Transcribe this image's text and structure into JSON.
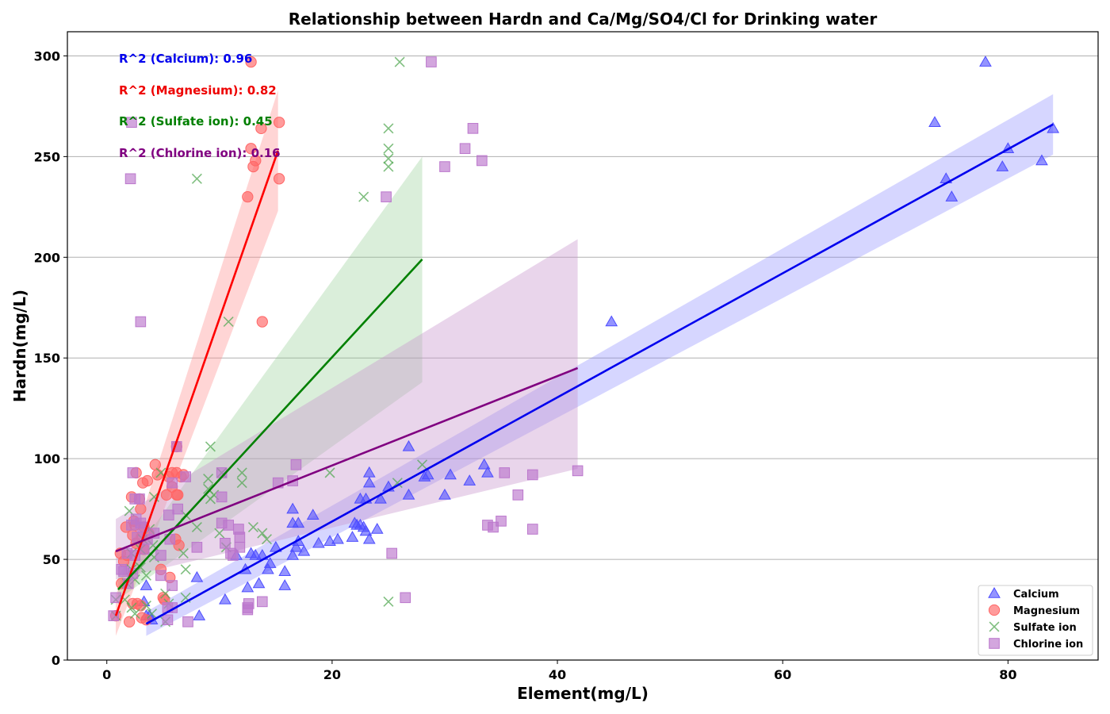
{
  "chart_data": {
    "type": "scatter",
    "title": "Relationship between Hardn and Ca/Mg/SO4/Cl for Drinking water",
    "xlabel": "Element(mg/L)",
    "ylabel": "Hardn(mg/L)",
    "xlim": [
      -3.5,
      88
    ],
    "ylim": [
      0,
      312
    ],
    "xticks": [
      0,
      20,
      40,
      60,
      80
    ],
    "yticks": [
      0,
      50,
      100,
      150,
      200,
      250,
      300
    ],
    "grid": "y-major",
    "legend_position": "bottom-right",
    "annotations": [
      {
        "text": "R^2 (Calcium): 0.96",
        "color": "#0000ee"
      },
      {
        "text": "R^2 (Magnesium): 0.82",
        "color": "#ee0000"
      },
      {
        "text": "R^2 (Sulfate ion): 0.45",
        "color": "#008000"
      },
      {
        "text": "R^2 (Chlorine ion): 0.16",
        "color": "#800080"
      }
    ],
    "series": [
      {
        "name": "Calcium",
        "marker": "triangle",
        "color": "#4d4dff",
        "fit": {
          "x": [
            3.5,
            84
          ],
          "y": [
            18,
            266
          ],
          "band_half_width": [
            6,
            15
          ]
        },
        "points": [
          [
            73.5,
            267
          ],
          [
            74.5,
            239
          ],
          [
            75,
            230
          ],
          [
            78,
            297
          ],
          [
            79.5,
            245
          ],
          [
            80,
            254
          ],
          [
            83,
            248
          ],
          [
            84,
            264
          ],
          [
            44.8,
            168
          ],
          [
            26.8,
            106
          ],
          [
            33.5,
            97
          ],
          [
            33.8,
            93
          ],
          [
            30.5,
            92
          ],
          [
            28.5,
            92
          ],
          [
            28.2,
            91
          ],
          [
            32.2,
            89
          ],
          [
            30,
            82
          ],
          [
            26.8,
            82
          ],
          [
            23.3,
            93
          ],
          [
            23.3,
            88
          ],
          [
            25,
            86
          ],
          [
            24.3,
            80
          ],
          [
            22.5,
            80
          ],
          [
            23,
            80
          ],
          [
            22,
            68
          ],
          [
            22.2,
            67
          ],
          [
            22.5,
            67
          ],
          [
            22.8,
            66
          ],
          [
            23,
            64
          ],
          [
            21.8,
            61
          ],
          [
            23.3,
            60
          ],
          [
            24,
            65
          ],
          [
            18.3,
            72
          ],
          [
            19.8,
            59
          ],
          [
            20.5,
            60
          ],
          [
            18.8,
            58
          ],
          [
            16.5,
            75
          ],
          [
            16.5,
            68
          ],
          [
            17,
            68
          ],
          [
            17,
            59
          ],
          [
            16.8,
            56
          ],
          [
            17.5,
            54
          ],
          [
            16.5,
            52
          ],
          [
            15,
            56
          ],
          [
            15.8,
            44
          ],
          [
            14.5,
            48
          ],
          [
            14.3,
            45
          ],
          [
            13.2,
            52
          ],
          [
            13.8,
            52
          ],
          [
            12.8,
            53
          ],
          [
            13.5,
            38
          ],
          [
            12.5,
            36
          ],
          [
            15.8,
            37
          ],
          [
            12.3,
            45
          ],
          [
            11.5,
            52
          ],
          [
            10.5,
            30
          ],
          [
            8,
            41
          ],
          [
            8.2,
            22
          ],
          [
            3.5,
            37
          ],
          [
            3.3,
            29
          ],
          [
            3.5,
            22
          ],
          [
            3.8,
            22
          ],
          [
            4,
            20
          ]
        ]
      },
      {
        "name": "Magnesium",
        "marker": "circle",
        "color": "#ff6666",
        "fit": {
          "x": [
            0.8,
            15.2
          ],
          "y": [
            22,
            253
          ],
          "band_half_width": [
            10,
            30
          ]
        },
        "points": [
          [
            12.8,
            297
          ],
          [
            13.7,
            264
          ],
          [
            15.3,
            267
          ],
          [
            12.8,
            254
          ],
          [
            13,
            245
          ],
          [
            13.2,
            248
          ],
          [
            12.5,
            230
          ],
          [
            15.3,
            239
          ],
          [
            13.8,
            168
          ],
          [
            6.2,
            106
          ],
          [
            4.3,
            97
          ],
          [
            2.6,
            93
          ],
          [
            3.2,
            88
          ],
          [
            3.6,
            89
          ],
          [
            4.5,
            92
          ],
          [
            5.8,
            93
          ],
          [
            6.2,
            93
          ],
          [
            6.8,
            92
          ],
          [
            5.5,
            91
          ],
          [
            6.6,
            91
          ],
          [
            2.2,
            81
          ],
          [
            2.9,
            80
          ],
          [
            3,
            75
          ],
          [
            5.3,
            82
          ],
          [
            5.8,
            86
          ],
          [
            6.3,
            82
          ],
          [
            6.2,
            82
          ],
          [
            2.4,
            69
          ],
          [
            2.5,
            67
          ],
          [
            3.3,
            66
          ],
          [
            3.1,
            61
          ],
          [
            2.3,
            62
          ],
          [
            3.7,
            63
          ],
          [
            1.7,
            66
          ],
          [
            2.6,
            58
          ],
          [
            3.3,
            55
          ],
          [
            6.1,
            60
          ],
          [
            6.4,
            57
          ],
          [
            1.2,
            53
          ],
          [
            1.5,
            49
          ],
          [
            1.8,
            52
          ],
          [
            4.8,
            45
          ],
          [
            5.6,
            41
          ],
          [
            1.3,
            38
          ],
          [
            2.3,
            28
          ],
          [
            2.7,
            28
          ],
          [
            3,
            27
          ],
          [
            5,
            31
          ],
          [
            5.1,
            30
          ],
          [
            3.1,
            21
          ],
          [
            2,
            19
          ],
          [
            3.5,
            20
          ],
          [
            0.8,
            22
          ]
        ]
      },
      {
        "name": "Sulfate ion",
        "marker": "x",
        "color": "#55aa55",
        "fit": {
          "x": [
            1,
            28
          ],
          "y": [
            35,
            199
          ],
          "band_lo": [
            30,
            138
          ],
          "band_hi": [
            42,
            250
          ]
        },
        "points": [
          [
            26,
            297
          ],
          [
            25,
            264
          ],
          [
            25,
            254
          ],
          [
            25,
            249
          ],
          [
            25,
            245
          ],
          [
            22.8,
            230
          ],
          [
            8,
            239
          ],
          [
            10.8,
            168
          ],
          [
            9.2,
            106
          ],
          [
            28,
            97
          ],
          [
            19.8,
            93
          ],
          [
            10.2,
            93
          ],
          [
            12,
            93
          ],
          [
            12,
            88
          ],
          [
            9,
            90
          ],
          [
            9,
            85
          ],
          [
            9.5,
            82
          ],
          [
            9.2,
            80
          ],
          [
            25.8,
            88
          ],
          [
            8,
            66
          ],
          [
            10,
            63
          ],
          [
            13.8,
            63
          ],
          [
            14.2,
            60
          ],
          [
            13,
            66
          ],
          [
            10.6,
            56
          ],
          [
            7,
            72
          ],
          [
            6.8,
            53
          ],
          [
            7,
            45
          ],
          [
            7,
            31
          ],
          [
            4.2,
            81
          ],
          [
            4.8,
            93
          ],
          [
            3.8,
            65
          ],
          [
            3.2,
            60
          ],
          [
            4.1,
            57
          ],
          [
            4.2,
            51
          ],
          [
            3.5,
            42
          ],
          [
            3,
            46
          ],
          [
            2.5,
            40
          ],
          [
            3,
            55
          ],
          [
            2.2,
            53
          ],
          [
            2.2,
            45
          ],
          [
            2,
            74
          ],
          [
            1.8,
            38
          ],
          [
            1.6,
            30
          ],
          [
            2.2,
            26
          ],
          [
            2.5,
            23
          ],
          [
            3.5,
            27
          ],
          [
            4,
            23
          ],
          [
            5.2,
            33
          ],
          [
            5.5,
            28
          ],
          [
            5.2,
            19
          ],
          [
            25,
            29
          ],
          [
            0.8,
            22
          ],
          [
            0.8,
            30
          ]
        ]
      },
      {
        "name": "Chlorine ion",
        "marker": "square",
        "color": "#bb77cc",
        "fit": {
          "x": [
            0.8,
            41.8
          ],
          "y": [
            54,
            145
          ],
          "band_lo": [
            40,
            95
          ],
          "band_hi": [
            70,
            209
          ]
        },
        "points": [
          [
            28.8,
            297
          ],
          [
            32.5,
            264
          ],
          [
            31.8,
            254
          ],
          [
            33.3,
            248
          ],
          [
            30,
            245
          ],
          [
            24.8,
            230
          ],
          [
            2.2,
            267
          ],
          [
            2.1,
            239
          ],
          [
            3,
            168
          ],
          [
            6.2,
            106
          ],
          [
            16.8,
            97
          ],
          [
            15.2,
            88
          ],
          [
            16.5,
            89
          ],
          [
            10.2,
            93
          ],
          [
            10.2,
            81
          ],
          [
            7,
            91
          ],
          [
            5.5,
            72
          ],
          [
            2.3,
            93
          ],
          [
            2.5,
            80
          ],
          [
            2.9,
            80
          ],
          [
            2.6,
            70
          ],
          [
            3,
            68
          ],
          [
            3.2,
            66
          ],
          [
            2.2,
            67
          ],
          [
            2.7,
            61
          ],
          [
            3.3,
            55
          ],
          [
            2.5,
            52
          ],
          [
            4.2,
            63
          ],
          [
            4.8,
            52
          ],
          [
            3.6,
            60
          ],
          [
            5.6,
            60
          ],
          [
            6.3,
            75
          ],
          [
            5.8,
            88
          ],
          [
            10.2,
            68
          ],
          [
            10.8,
            67
          ],
          [
            11.7,
            65
          ],
          [
            10.5,
            58
          ],
          [
            11,
            53
          ],
          [
            11.2,
            52
          ],
          [
            11.8,
            61
          ],
          [
            11.8,
            56
          ],
          [
            12.5,
            26
          ],
          [
            12.6,
            28
          ],
          [
            12.5,
            25
          ],
          [
            13.8,
            29
          ],
          [
            8,
            56
          ],
          [
            5.8,
            37
          ],
          [
            5.8,
            26
          ],
          [
            5.4,
            26
          ],
          [
            5.4,
            20
          ],
          [
            7.2,
            19
          ],
          [
            4.8,
            42
          ],
          [
            1.3,
            45
          ],
          [
            1.5,
            44
          ],
          [
            1.8,
            53
          ],
          [
            2.3,
            43
          ],
          [
            1.9,
            38
          ],
          [
            0.8,
            31
          ],
          [
            0.6,
            22
          ],
          [
            35.3,
            93
          ],
          [
            37.8,
            92
          ],
          [
            36.5,
            82
          ],
          [
            33.8,
            67
          ],
          [
            34.3,
            66
          ],
          [
            35,
            69
          ],
          [
            37.8,
            65
          ],
          [
            41.8,
            94
          ],
          [
            25.3,
            53
          ],
          [
            26.5,
            31
          ]
        ]
      }
    ]
  }
}
